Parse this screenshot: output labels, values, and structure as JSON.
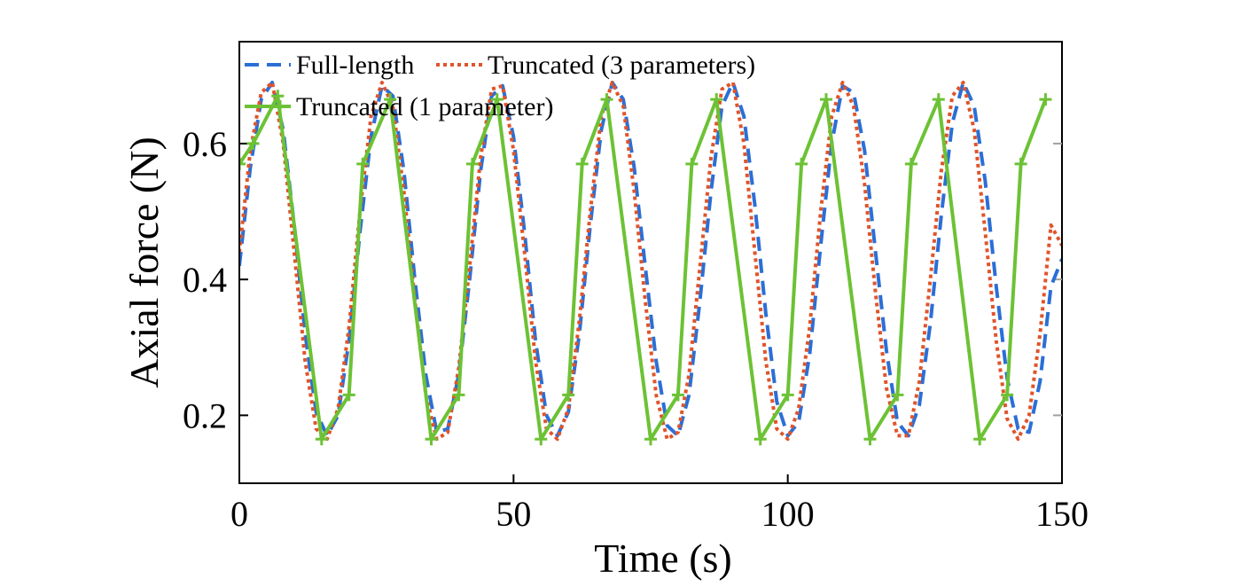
{
  "chart_data": {
    "type": "line",
    "xlabel": "Time (s)",
    "ylabel": "Axial force (N)",
    "xlim": [
      0,
      150
    ],
    "ylim": [
      0.1,
      0.75
    ],
    "x_ticks": [
      0,
      50,
      100,
      150
    ],
    "x_tick_labels": [
      "0",
      "50",
      "100",
      "150"
    ],
    "y_ticks": [
      0.2,
      0.4,
      0.6
    ],
    "y_tick_labels": [
      "0.2",
      "0.4",
      "0.6"
    ],
    "grid": false,
    "legend_position": "top-left",
    "series": [
      {
        "name": "Full-length",
        "color": "#2b6fd6",
        "style": "dashed",
        "x": [
          0,
          2,
          4,
          6,
          8,
          10,
          12,
          14,
          16,
          18,
          20,
          22,
          24,
          26,
          28,
          30,
          32,
          34,
          36,
          38,
          40,
          42,
          44,
          46,
          48,
          50,
          52,
          54,
          56,
          58,
          60,
          62,
          64,
          66,
          68,
          70,
          72,
          74,
          76,
          78,
          80,
          82,
          84,
          86,
          88,
          90,
          92,
          94,
          96,
          98,
          100,
          102,
          104,
          106,
          108,
          110,
          112,
          114,
          116,
          118,
          120,
          122,
          124,
          126,
          128,
          130,
          132,
          134,
          136,
          138,
          140,
          142,
          144,
          146,
          148,
          150
        ],
        "y": [
          0.42,
          0.565,
          0.665,
          0.69,
          0.62,
          0.48,
          0.32,
          0.205,
          0.17,
          0.2,
          0.31,
          0.47,
          0.61,
          0.685,
          0.67,
          0.56,
          0.4,
          0.26,
          0.175,
          0.18,
          0.26,
          0.4,
          0.56,
          0.67,
          0.685,
          0.61,
          0.47,
          0.31,
          0.2,
          0.17,
          0.205,
          0.32,
          0.48,
          0.62,
          0.69,
          0.665,
          0.565,
          0.42,
          0.28,
          0.185,
          0.17,
          0.23,
          0.37,
          0.53,
          0.655,
          0.69,
          0.64,
          0.51,
          0.35,
          0.22,
          0.17,
          0.19,
          0.29,
          0.45,
          0.6,
          0.685,
          0.675,
          0.59,
          0.44,
          0.295,
          0.19,
          0.17,
          0.215,
          0.335,
          0.495,
          0.63,
          0.69,
          0.655,
          0.545,
          0.39,
          0.255,
          0.18,
          0.175,
          0.25,
          0.39,
          0.43
        ]
      },
      {
        "name": "Truncated (3 parameters)",
        "color": "#e0542a",
        "style": "dotted",
        "x": [
          0,
          2,
          4,
          6,
          8,
          10,
          12,
          14,
          16,
          18,
          20,
          22,
          24,
          26,
          28,
          30,
          32,
          34,
          36,
          38,
          40,
          42,
          44,
          46,
          48,
          50,
          52,
          54,
          56,
          58,
          60,
          62,
          64,
          66,
          68,
          70,
          72,
          74,
          76,
          78,
          80,
          82,
          84,
          86,
          88,
          90,
          92,
          94,
          96,
          98,
          100,
          102,
          104,
          106,
          108,
          110,
          112,
          114,
          116,
          118,
          120,
          122,
          124,
          126,
          128,
          130,
          132,
          134,
          136,
          138,
          140,
          142,
          144,
          146,
          148,
          150
        ],
        "y": [
          0.44,
          0.59,
          0.675,
          0.69,
          0.6,
          0.44,
          0.28,
          0.18,
          0.165,
          0.21,
          0.33,
          0.5,
          0.64,
          0.69,
          0.655,
          0.53,
          0.37,
          0.23,
          0.165,
          0.175,
          0.27,
          0.42,
          0.58,
          0.68,
          0.685,
          0.59,
          0.44,
          0.28,
          0.18,
          0.165,
          0.21,
          0.34,
          0.5,
          0.64,
          0.69,
          0.655,
          0.53,
          0.37,
          0.23,
          0.165,
          0.175,
          0.26,
          0.42,
          0.58,
          0.68,
          0.69,
          0.6,
          0.44,
          0.28,
          0.18,
          0.165,
          0.21,
          0.33,
          0.5,
          0.64,
          0.69,
          0.655,
          0.54,
          0.38,
          0.24,
          0.17,
          0.17,
          0.25,
          0.4,
          0.56,
          0.67,
          0.69,
          0.62,
          0.47,
          0.31,
          0.195,
          0.165,
          0.2,
          0.32,
          0.48,
          0.45
        ]
      },
      {
        "name": "Truncated (1 parameter)",
        "color": "#6cc234",
        "style": "solid",
        "x": [
          0,
          2.5,
          7,
          15,
          20,
          22.5,
          27.5,
          35,
          40,
          42.5,
          47,
          55,
          60,
          62.5,
          67,
          75,
          80,
          82.5,
          87,
          95,
          100,
          102.5,
          107,
          115,
          120,
          122.5,
          127.5,
          135,
          140,
          142.5,
          147
        ],
        "y": [
          0.57,
          0.6,
          0.67,
          0.165,
          0.23,
          0.57,
          0.665,
          0.165,
          0.23,
          0.57,
          0.665,
          0.165,
          0.23,
          0.57,
          0.665,
          0.165,
          0.23,
          0.57,
          0.665,
          0.165,
          0.23,
          0.57,
          0.665,
          0.165,
          0.23,
          0.57,
          0.665,
          0.165,
          0.23,
          0.57,
          0.665
        ]
      }
    ]
  }
}
